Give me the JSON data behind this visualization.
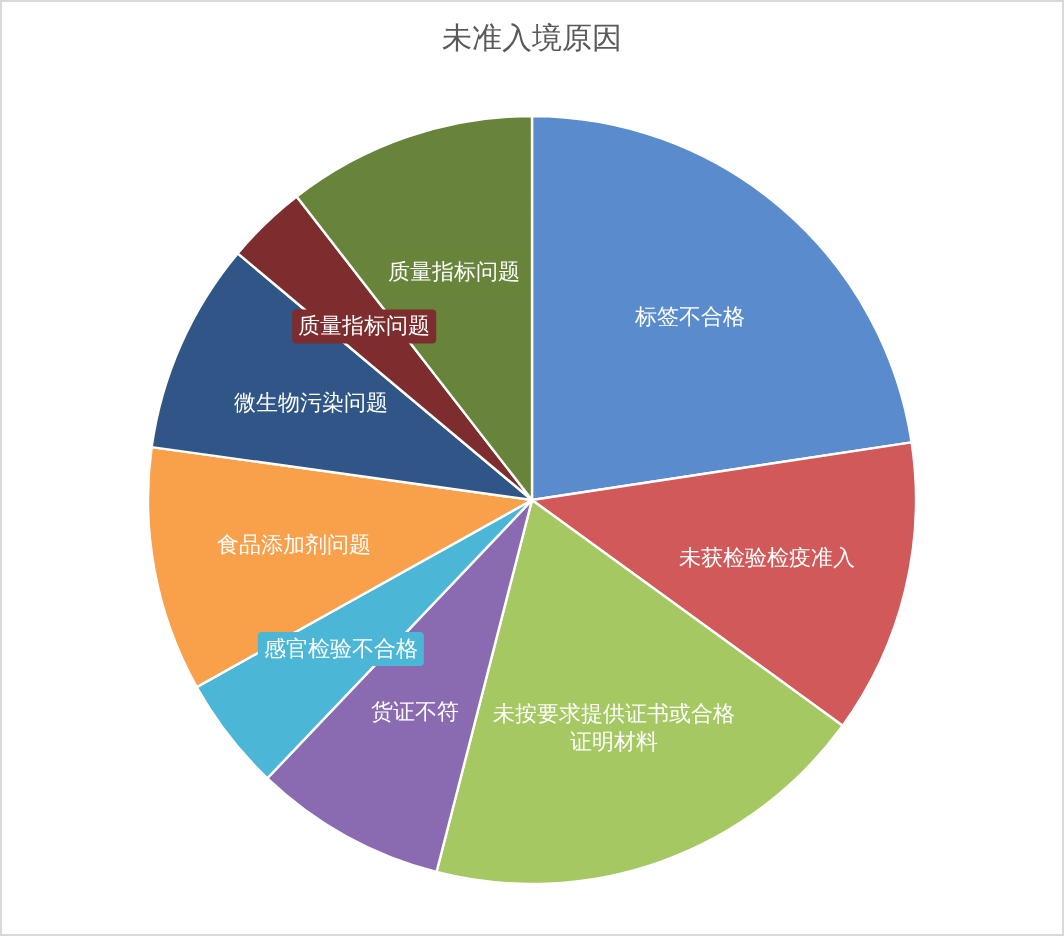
{
  "chart_data": {
    "type": "pie",
    "title": "未准入境原因",
    "categories": [
      "标签不合格",
      "未获检验检疫准入",
      "未按要求提供证书或合格证明材料",
      "货证不符",
      "感官检验不合格",
      "食品添加剂问题",
      "微生物污染问题",
      "质量指标问题",
      "质量指标问题"
    ],
    "values": [
      22.6,
      12.4,
      19.0,
      8.1,
      4.8,
      10.3,
      8.9,
      3.4,
      10.5
    ],
    "colors": [
      "#5a8ccd",
      "#d2595a",
      "#a5c862",
      "#8a6bb2",
      "#4cb6d6",
      "#f9a04b",
      "#305587",
      "#7d2d2d",
      "#68843a"
    ]
  }
}
